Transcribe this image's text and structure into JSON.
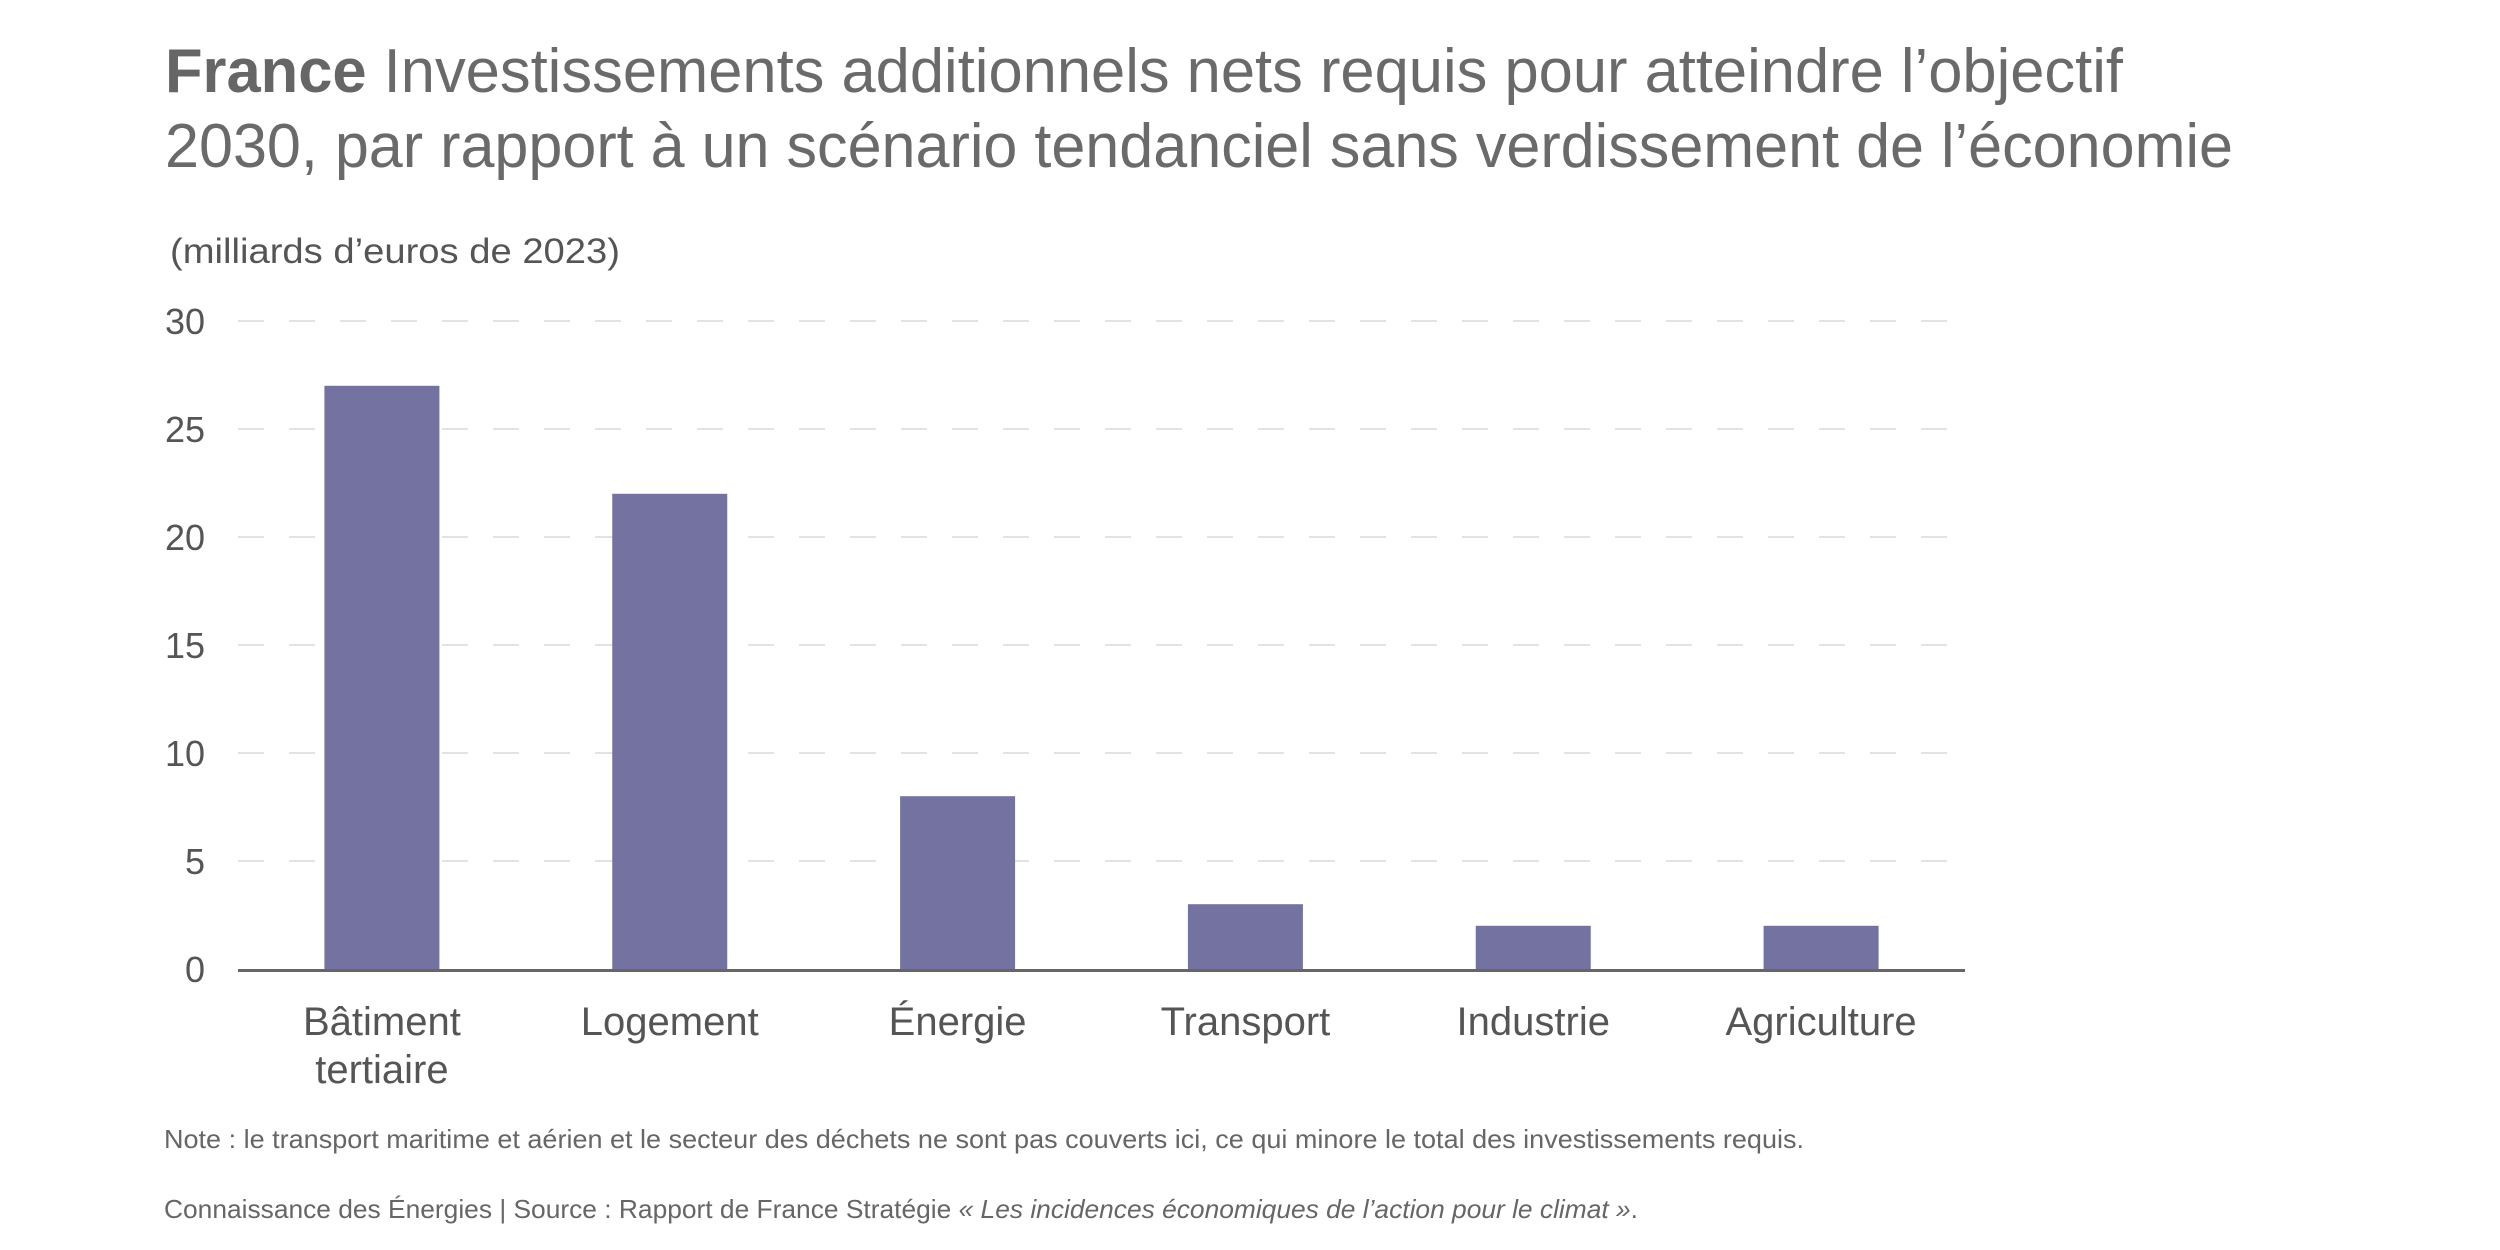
{
  "header": {
    "title_bold": "France",
    "title_line1": " Investissements additionnels nets requis pour atteindre l’objectif",
    "title_line2": "2030, par rapport à un scénario tendanciel sans verdissement de l’économie"
  },
  "colors": {
    "bar": "#7372a0",
    "axis": "#666666",
    "grid": "#e3e3e3",
    "text": "#555555"
  },
  "chart_data": {
    "type": "bar",
    "title": "France Investissements additionnels nets requis pour atteindre l’objectif 2030, par rapport à un scénario tendanciel sans verdissement de l’économie",
    "ylabel": "(milliards d’euros de 2023)",
    "xlabel": "",
    "categories": [
      "Bâtiment tertiaire",
      "Logement",
      "Énergie",
      "Transport",
      "Industrie",
      "Agriculture"
    ],
    "category_lines": [
      [
        "Bâtiment",
        "tertiaire"
      ],
      [
        "Logement"
      ],
      [
        "Énergie"
      ],
      [
        "Transport"
      ],
      [
        "Industrie"
      ],
      [
        "Agriculture"
      ]
    ],
    "values": [
      27,
      22,
      8,
      3,
      2,
      2
    ],
    "ylim": [
      0,
      30
    ],
    "yticks": [
      0,
      5,
      10,
      15,
      20,
      25,
      30
    ],
    "grid": true,
    "legend": "none"
  },
  "footer": {
    "note": "Note : le transport maritime et aérien et le secteur des déchets ne sont pas couverts ici, ce qui minore le total des investissements requis.",
    "source_prefix": "Connaissance des Énergies | Source : Rapport de France Stratégie ",
    "source_title": "« Les incidences économiques de l’action pour le climat »",
    "source_suffix": "."
  }
}
